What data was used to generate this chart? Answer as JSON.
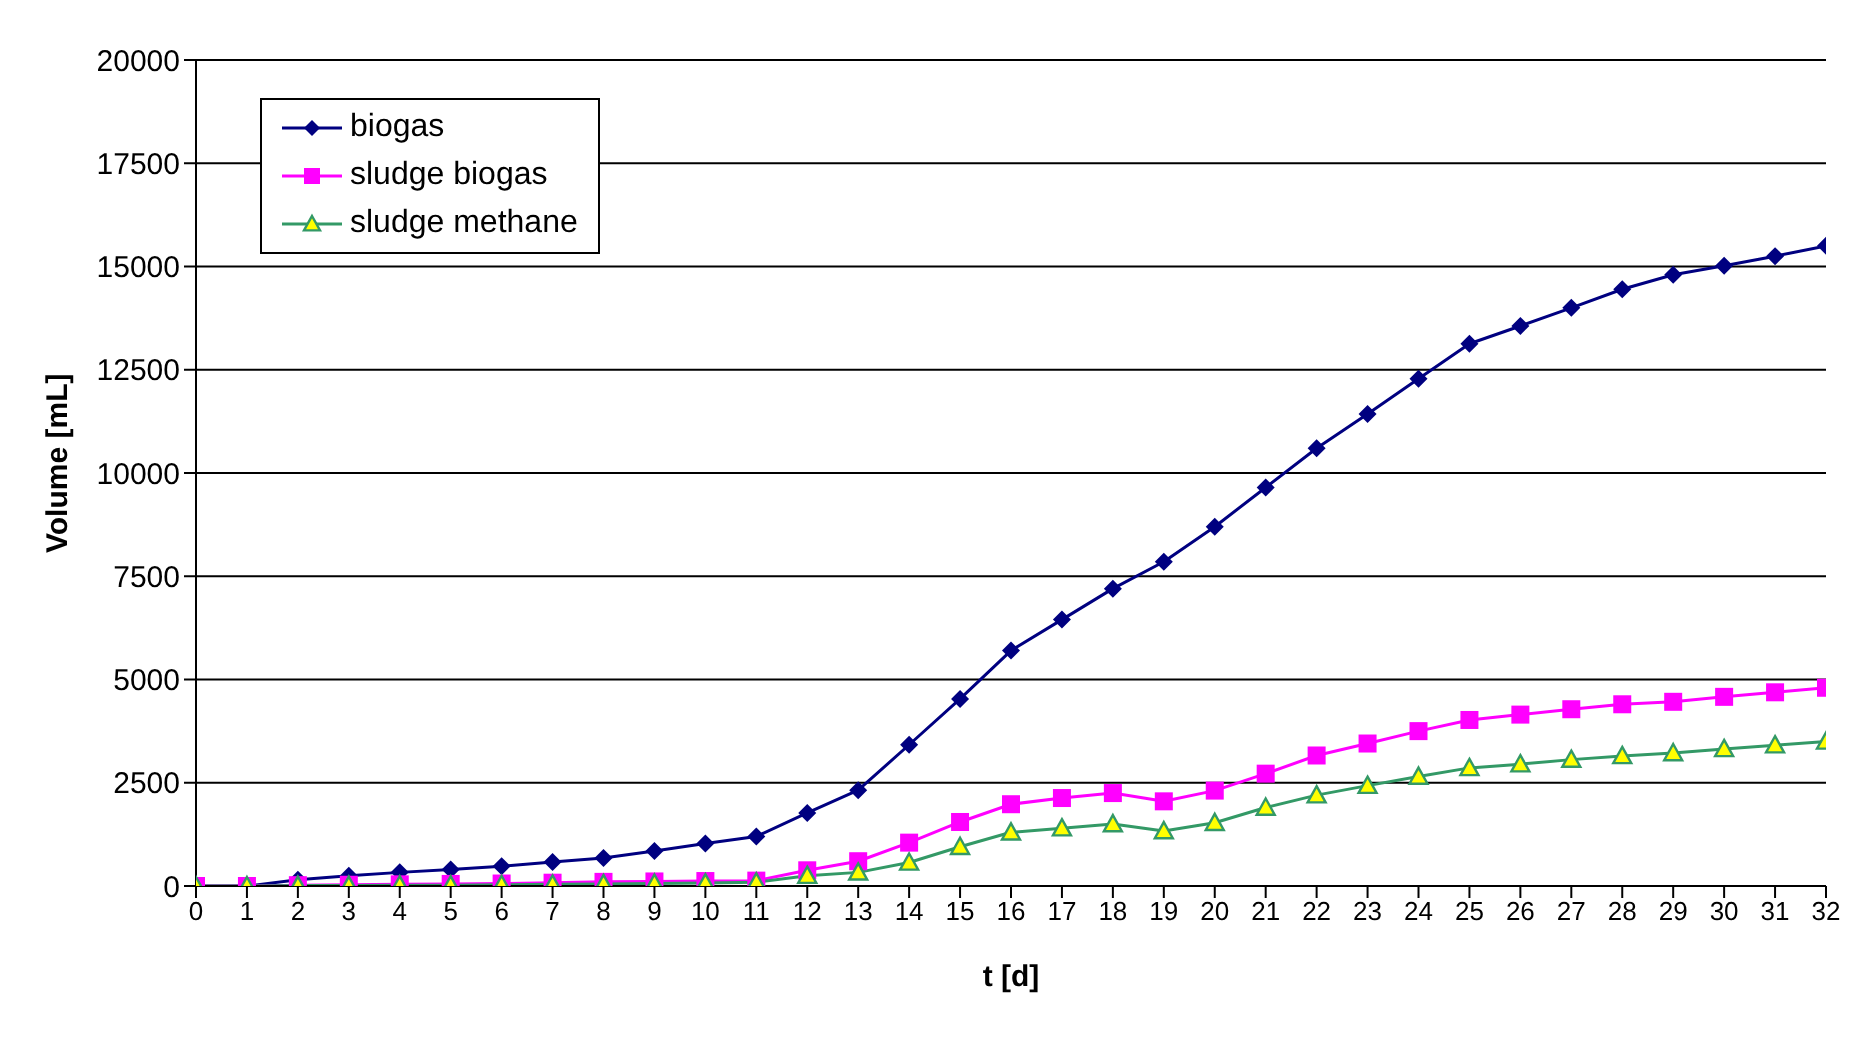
{
  "chart_data": {
    "type": "line",
    "xlabel": "t [d]",
    "ylabel": "Volume [mL]",
    "x": [
      0,
      1,
      2,
      3,
      4,
      5,
      6,
      7,
      8,
      9,
      10,
      11,
      12,
      13,
      14,
      15,
      16,
      17,
      18,
      19,
      20,
      21,
      22,
      23,
      24,
      25,
      26,
      27,
      28,
      29,
      30,
      31,
      32
    ],
    "series": [
      {
        "name": "biogas",
        "color": "#000080",
        "marker": "diamond",
        "values": [
          0,
          0,
          150,
          250,
          330,
          400,
          480,
          580,
          680,
          850,
          1030,
          1200,
          1770,
          2320,
          3420,
          4530,
          5700,
          6450,
          7200,
          7850,
          8700,
          9650,
          10600,
          11430,
          12280,
          13130,
          13560,
          14000,
          14450,
          14800,
          15020,
          15250,
          15500
        ]
      },
      {
        "name": "sludge biogas",
        "color": "#ff00ff",
        "marker": "square",
        "values": [
          0,
          0,
          20,
          30,
          40,
          50,
          60,
          80,
          100,
          110,
          120,
          130,
          380,
          600,
          1050,
          1550,
          1980,
          2130,
          2250,
          2050,
          2310,
          2720,
          3160,
          3450,
          3750,
          4020,
          4150,
          4280,
          4400,
          4460,
          4580,
          4690,
          4800
        ]
      },
      {
        "name": "sludge methane",
        "color": "#339966",
        "marker": "triangle",
        "values": [
          0,
          0,
          10,
          10,
          20,
          20,
          30,
          40,
          50,
          60,
          70,
          90,
          250,
          330,
          570,
          950,
          1300,
          1400,
          1500,
          1330,
          1530,
          1900,
          2200,
          2430,
          2650,
          2860,
          2950,
          3060,
          3150,
          3220,
          3320,
          3410,
          3500
        ]
      }
    ],
    "xlim": [
      0,
      32
    ],
    "xticks": [
      0,
      1,
      2,
      3,
      4,
      5,
      6,
      7,
      8,
      9,
      10,
      11,
      12,
      13,
      14,
      15,
      16,
      17,
      18,
      19,
      20,
      21,
      22,
      23,
      24,
      25,
      26,
      27,
      28,
      29,
      30,
      31,
      32
    ],
    "ylim": [
      0,
      20000
    ],
    "yticks": [
      0,
      2500,
      5000,
      7500,
      10000,
      12500,
      15000,
      17500,
      20000
    ],
    "grid": "y",
    "legend": "top left",
    "line_style": "solid"
  }
}
